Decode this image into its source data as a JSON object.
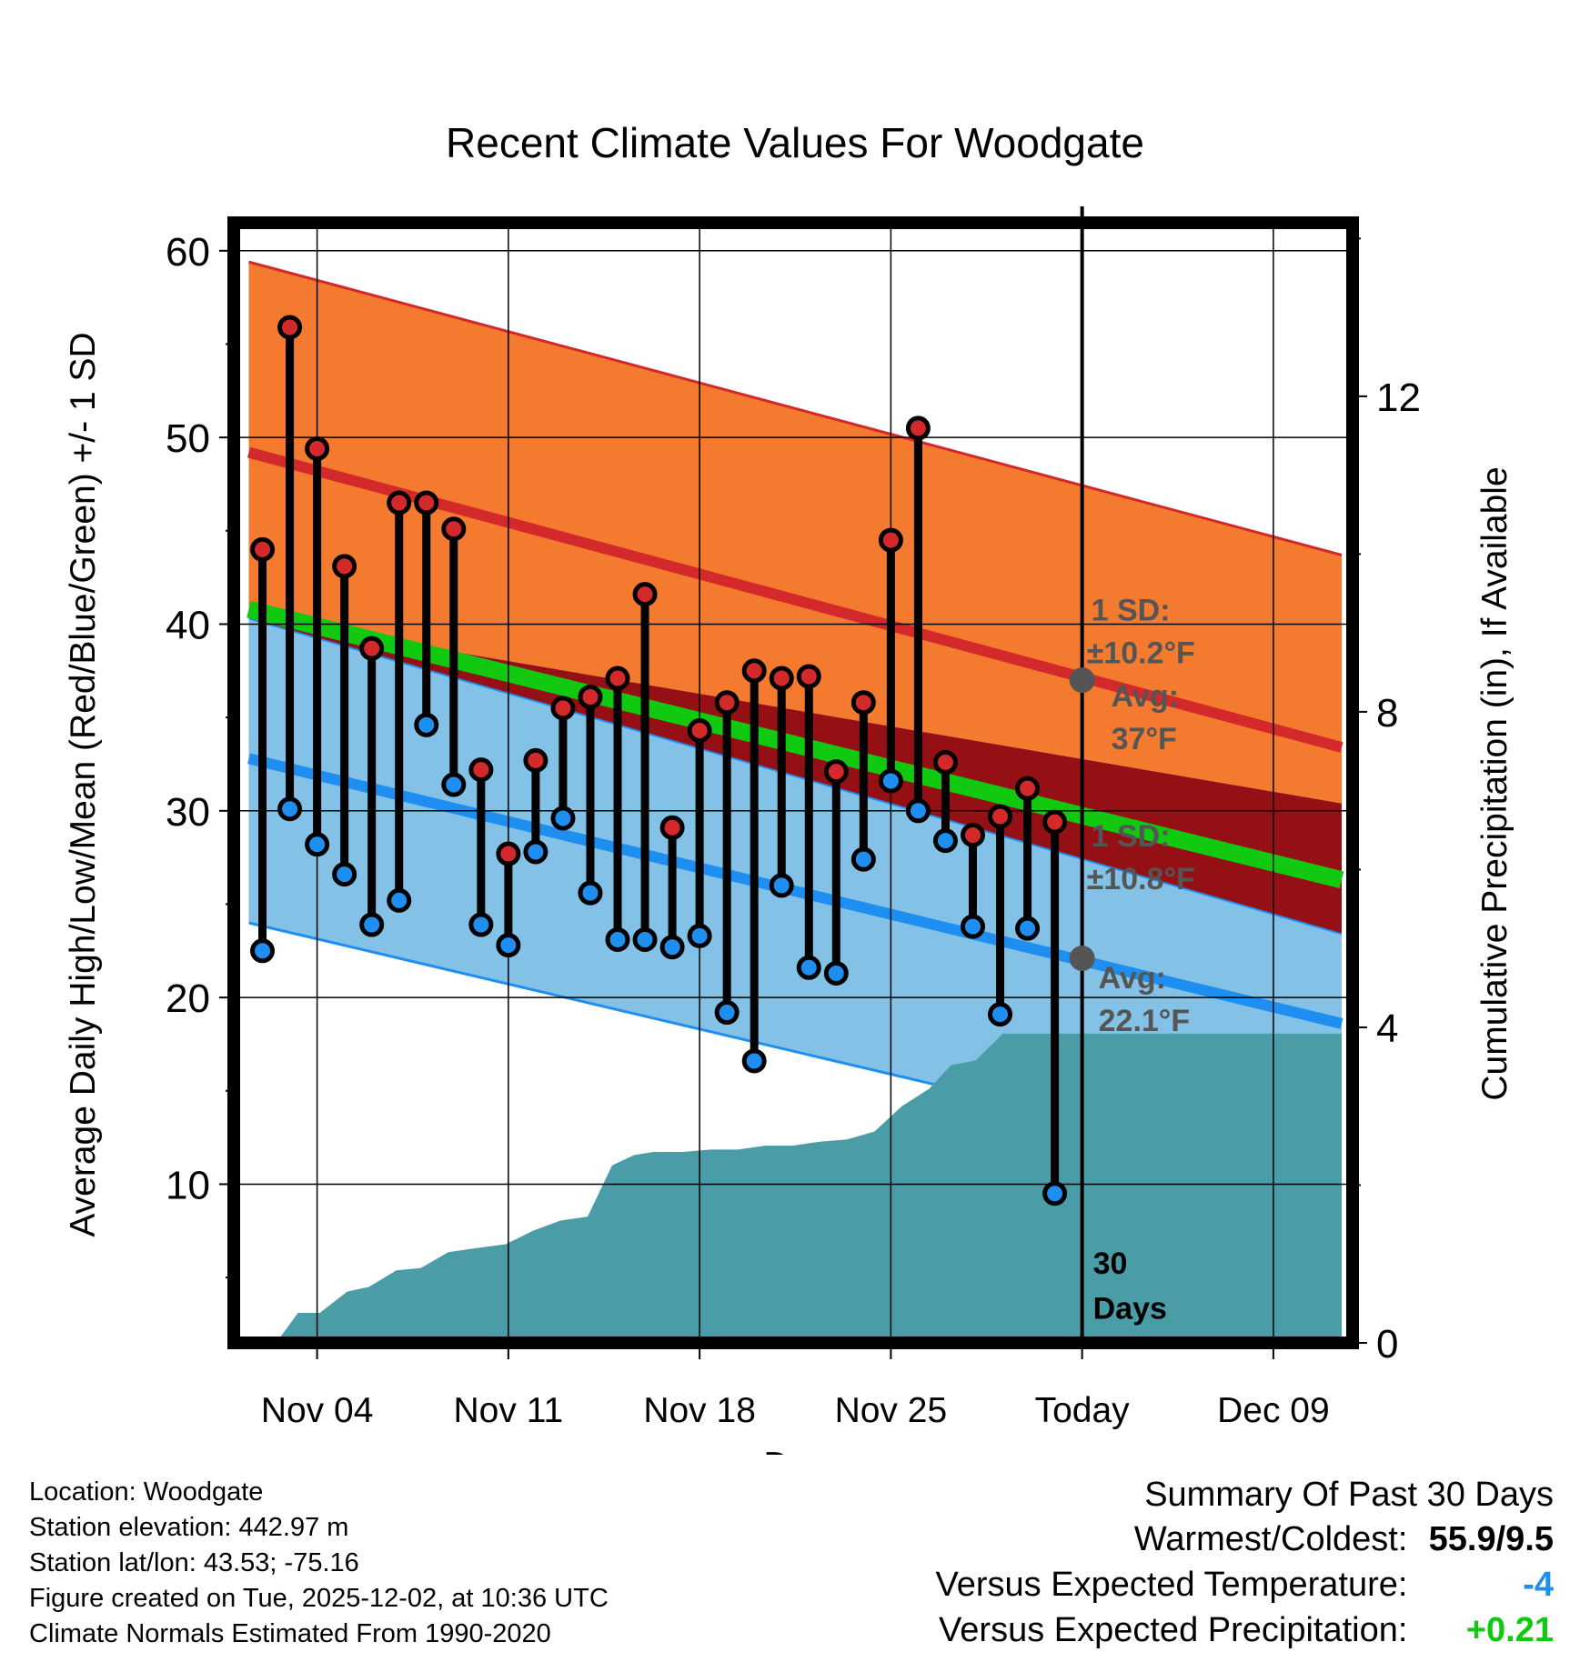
{
  "chart_data": {
    "type": "line",
    "title": "Recent Climate Values For Woodgate",
    "xlabel": "Day",
    "ylabel": "Average Daily High/Low/Mean (Red/Blue/Green) +/- 1 SD",
    "y2label": "Cumulative Precipitation (in), If Available",
    "xticks": [
      {
        "day": 4,
        "label": "Nov 04"
      },
      {
        "day": 11,
        "label": "Nov 11"
      },
      {
        "day": 18,
        "label": "Nov 18"
      },
      {
        "day": 25,
        "label": "Nov 25"
      },
      {
        "day": 32,
        "label": "Today"
      },
      {
        "day": 39,
        "label": "Dec 09"
      }
    ],
    "xlim": [
      0.95,
      41.9
    ],
    "ylim": [
      1.5,
      61.5
    ],
    "y2lim": [
      0,
      14.2
    ],
    "yticks": [
      10,
      20,
      30,
      40,
      50,
      60
    ],
    "y2ticks": [
      0,
      4,
      8,
      12
    ],
    "today_day": 32,
    "colors": {
      "high_band": "#f47a30",
      "high_line": "#d3292b",
      "low_band": "#84c1e7",
      "low_line": "#1e8ff0",
      "overlap": "#951014",
      "mean_line": "#10c910",
      "precip": "#4a9ca6",
      "high_marker": "#d3292b",
      "low_marker": "#1e8ff0",
      "annotation": "#555555",
      "warm_cold": "#000000",
      "temp_anomaly": "#1e8ff0",
      "precip_anomaly": "#10c910"
    },
    "normals": {
      "days": [
        1.5,
        41.5
      ],
      "high_avg": [
        49.2,
        33.4
      ],
      "high_upper": [
        59.4,
        43.7
      ],
      "high_lower": [
        40.4,
        30.4
      ],
      "low_avg": [
        32.8,
        18.6
      ],
      "low_upper": [
        40.3,
        23.4
      ],
      "low_lower": [
        24.0,
        10.2
      ],
      "mean_avg": [
        40.8,
        26.3
      ]
    },
    "observed": {
      "days": [
        2,
        3,
        4,
        5,
        6,
        7,
        8,
        9,
        10,
        11,
        12,
        13,
        14,
        15,
        16,
        17,
        18,
        19,
        20,
        21,
        22,
        23,
        24,
        25,
        26,
        27,
        28,
        29,
        30,
        31
      ],
      "high": [
        44.0,
        55.9,
        49.4,
        43.1,
        38.7,
        46.5,
        46.5,
        45.1,
        32.2,
        27.7,
        32.7,
        35.5,
        36.1,
        37.1,
        41.6,
        29.1,
        34.3,
        35.8,
        37.5,
        37.1,
        37.2,
        32.1,
        35.8,
        44.5,
        50.5,
        32.6,
        28.7,
        29.7,
        31.2,
        29.4
      ],
      "low": [
        22.5,
        30.1,
        28.2,
        26.6,
        23.9,
        25.2,
        34.6,
        31.4,
        23.9,
        22.8,
        27.8,
        29.6,
        25.6,
        23.1,
        23.1,
        22.7,
        23.3,
        19.2,
        16.6,
        26.0,
        21.6,
        21.3,
        27.4,
        31.6,
        30.0,
        28.4,
        23.8,
        19.1,
        23.7,
        9.5
      ]
    },
    "precip": {
      "days": [
        2.5,
        3.3,
        4.1,
        5.1,
        5.9,
        6.9,
        7.8,
        8.8,
        9.8,
        10.9,
        11.9,
        12.9,
        13.9,
        14.8,
        15.6,
        16.3,
        17.4,
        18.4,
        19.4,
        20.4,
        21.4,
        22.4,
        23.4,
        24.4,
        25.4,
        26.4,
        27.2,
        28.1,
        29.1,
        29.9,
        30.9,
        41.5
      ],
      "values": [
        0,
        0.38,
        0.38,
        0.65,
        0.71,
        0.92,
        0.95,
        1.15,
        1.2,
        1.25,
        1.42,
        1.55,
        1.6,
        2.25,
        2.38,
        2.42,
        2.42,
        2.45,
        2.45,
        2.5,
        2.5,
        2.55,
        2.58,
        2.68,
        3.0,
        3.22,
        3.52,
        3.58,
        3.92,
        3.92,
        3.92,
        3.92
      ]
    },
    "annotations": {
      "high_sd_label": "1 SD:",
      "high_sd_value": "±10.2°F",
      "high_avg_label": "Avg:",
      "high_avg_value": "37°F",
      "today_high_avg": 37.0,
      "low_sd_label": "1 SD:",
      "low_sd_value": "±10.8°F",
      "low_avg_label": "Avg:",
      "low_avg_value": "22.1°F",
      "today_low_avg": 22.1,
      "days_label_1": "30",
      "days_label_2": "Days"
    }
  },
  "footer": {
    "location": "Location: Woodgate",
    "elevation": "Station elevation: 442.97 m",
    "latlon": "Station lat/lon: 43.53; -75.16",
    "created": "Figure created on Tue, 2025-12-02, at 10:36 UTC",
    "normals": "Climate Normals Estimated From 1990-2020"
  },
  "summary": {
    "heading": "Summary Of Past 30 Days",
    "warm_cold_label": "Warmest/Coldest:",
    "warm_cold_value": "55.9/9.5",
    "temp_label": "Versus Expected Temperature:",
    "temp_value": "-4",
    "precip_label": "Versus Expected Precipitation:",
    "precip_value": "+0.21"
  }
}
